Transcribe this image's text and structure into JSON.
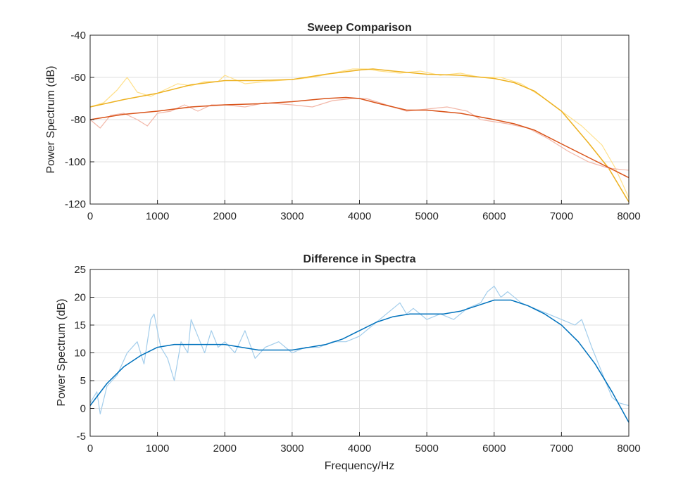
{
  "chart_data": [
    {
      "type": "line",
      "title": "Sweep Comparison",
      "xlabel": "",
      "ylabel": "Power Spectrum (dB)",
      "xlim": [
        0,
        8000
      ],
      "ylim": [
        -120,
        -40
      ],
      "xticks": [
        0,
        1000,
        2000,
        3000,
        4000,
        5000,
        6000,
        7000,
        8000
      ],
      "yticks": [
        -40,
        -60,
        -80,
        -100,
        -120
      ],
      "grid": true,
      "series": [
        {
          "color": "#FFE08A",
          "style": "raw",
          "x": [
            0,
            200,
            400,
            550,
            700,
            900,
            1100,
            1300,
            1500,
            1700,
            1900,
            2000,
            2300,
            2600,
            3000,
            3300,
            3600,
            3900,
            4100,
            4300,
            4600,
            4900,
            5200,
            5500,
            5800,
            6100,
            6400,
            6700,
            7000,
            7300,
            7600,
            7800,
            8000
          ],
          "y": [
            -74,
            -72,
            -66,
            -60,
            -67,
            -69,
            -66,
            -63,
            -64,
            -62,
            -62,
            -59,
            -63,
            -62,
            -61,
            -60,
            -58,
            -56,
            -56,
            -57,
            -58,
            -57,
            -59,
            -58,
            -60,
            -60,
            -63,
            -69,
            -76,
            -83,
            -92,
            -103,
            -117
          ]
        },
        {
          "color": "#EDB120",
          "style": "fit",
          "x": [
            0,
            500,
            1000,
            1500,
            2000,
            2500,
            3000,
            3500,
            4000,
            4200,
            4500,
            5000,
            5500,
            6000,
            6300,
            6600,
            7000,
            7400,
            7700,
            8000
          ],
          "y": [
            -74,
            -70.5,
            -67.5,
            -63.5,
            -61.5,
            -61.5,
            -61,
            -58.5,
            -56.5,
            -56,
            -57,
            -58.5,
            -59,
            -60.5,
            -62.5,
            -66.5,
            -76,
            -91,
            -103,
            -119
          ]
        },
        {
          "color": "#F2B7A8",
          "style": "raw",
          "x": [
            0,
            150,
            300,
            500,
            700,
            850,
            1000,
            1200,
            1400,
            1600,
            1800,
            2000,
            2300,
            2600,
            3000,
            3300,
            3600,
            3900,
            4100,
            4400,
            4700,
            5000,
            5300,
            5600,
            5800,
            6000,
            6200,
            6500,
            6800,
            7100,
            7400,
            7700,
            8000
          ],
          "y": [
            -80,
            -84,
            -78,
            -77,
            -80,
            -83,
            -77,
            -76,
            -73,
            -76,
            -73,
            -73,
            -74,
            -72,
            -73,
            -74,
            -71,
            -70,
            -70,
            -73,
            -76,
            -75,
            -74,
            -76,
            -80,
            -81,
            -82,
            -84,
            -89,
            -95,
            -100,
            -103,
            -104
          ]
        },
        {
          "color": "#D95319",
          "style": "fit",
          "x": [
            0,
            500,
            1000,
            1500,
            2000,
            2500,
            3000,
            3500,
            3800,
            4000,
            4300,
            4700,
            5000,
            5500,
            6000,
            6300,
            6600,
            7000,
            7500,
            8000
          ],
          "y": [
            -80,
            -77.5,
            -76,
            -74,
            -73,
            -72.5,
            -71.5,
            -70,
            -69.5,
            -70,
            -72.5,
            -75.5,
            -75.5,
            -77,
            -80,
            -82,
            -85,
            -91.5,
            -99.5,
            -107.5
          ]
        }
      ]
    },
    {
      "type": "line",
      "title": "Difference in Spectra",
      "xlabel": "Frequency/Hz",
      "ylabel": "Power Spectrum (dB)",
      "xlim": [
        0,
        8000
      ],
      "ylim": [
        -5,
        25
      ],
      "xticks": [
        0,
        1000,
        2000,
        3000,
        4000,
        5000,
        6000,
        7000,
        8000
      ],
      "yticks": [
        25,
        20,
        15,
        10,
        5,
        0,
        -5
      ],
      "grid": true,
      "series": [
        {
          "color": "#A3CDEB",
          "style": "raw",
          "x": [
            0,
            100,
            150,
            250,
            400,
            550,
            700,
            800,
            900,
            950,
            1050,
            1150,
            1250,
            1350,
            1450,
            1500,
            1600,
            1700,
            1800,
            1900,
            2000,
            2150,
            2300,
            2450,
            2600,
            2800,
            3000,
            3200,
            3400,
            3600,
            3800,
            4000,
            4200,
            4400,
            4600,
            4700,
            4800,
            5000,
            5200,
            5400,
            5600,
            5800,
            5900,
            6000,
            6100,
            6200,
            6400,
            6600,
            6800,
            7000,
            7200,
            7300,
            7450,
            7550,
            7650,
            7750,
            7850,
            8000
          ],
          "y": [
            1,
            3,
            -1,
            4,
            6,
            10,
            12,
            8,
            16,
            17,
            11,
            9,
            5,
            12,
            10,
            16,
            13,
            10,
            14,
            11,
            12,
            10,
            14,
            9,
            11,
            12,
            10,
            11,
            11,
            12,
            12,
            13,
            15,
            17,
            19,
            17,
            18,
            16,
            17,
            16,
            18,
            19,
            21,
            22,
            20,
            21,
            19,
            18,
            17,
            16,
            15,
            16,
            11,
            8,
            5,
            2,
            1,
            0.5
          ]
        },
        {
          "color": "#0072BD",
          "style": "fit",
          "x": [
            0,
            250,
            500,
            750,
            1000,
            1250,
            1500,
            1750,
            2000,
            2250,
            2500,
            2750,
            3000,
            3250,
            3500,
            3750,
            4000,
            4250,
            4500,
            4750,
            5000,
            5250,
            5500,
            5750,
            6000,
            6250,
            6500,
            6750,
            7000,
            7250,
            7500,
            7750,
            8000
          ],
          "y": [
            0.5,
            4.5,
            7.5,
            9.5,
            11,
            11.5,
            11.5,
            11.5,
            11.5,
            11,
            10.5,
            10.5,
            10.5,
            11,
            11.5,
            12.5,
            14,
            15.5,
            16.5,
            17,
            17,
            17,
            17.5,
            18.5,
            19.5,
            19.5,
            18.5,
            17,
            15,
            12,
            8,
            3,
            -2.5
          ]
        }
      ]
    }
  ]
}
